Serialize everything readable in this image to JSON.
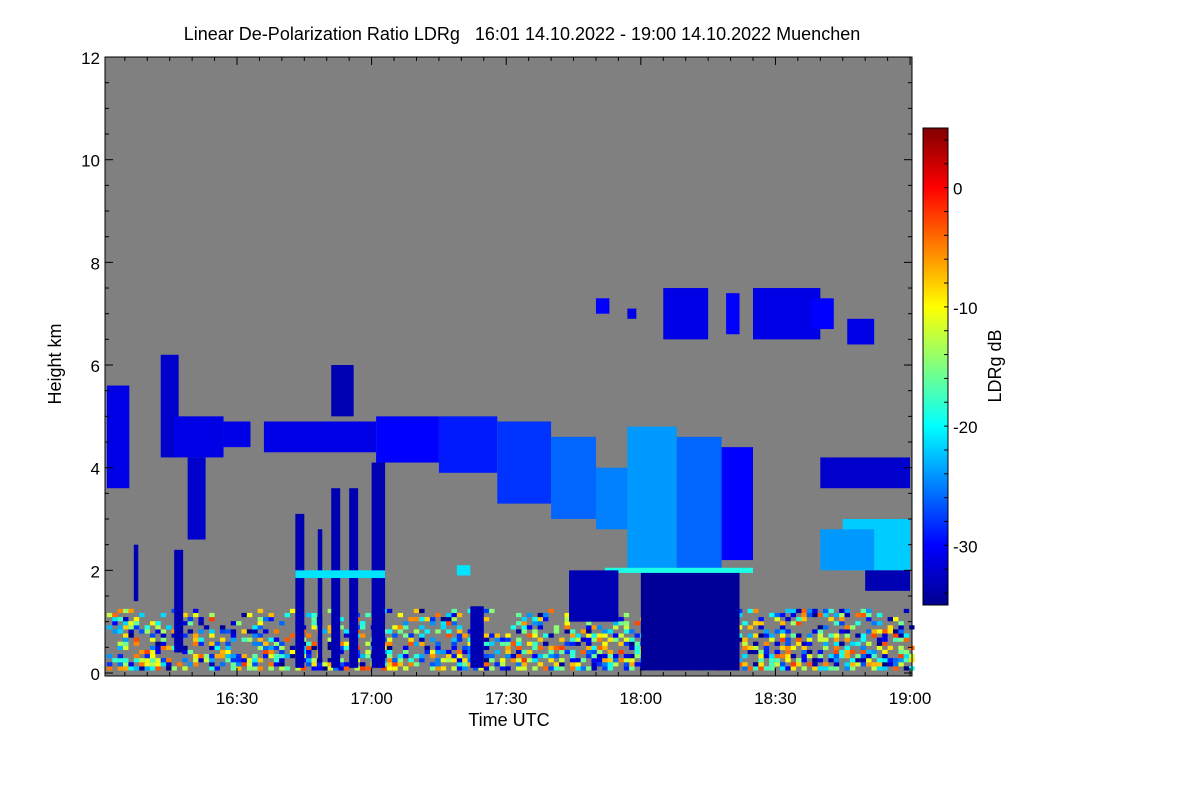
{
  "chart_data": {
    "type": "heatmap",
    "title": "Linear De-Polarization Ratio LDRg   16:01 14.10.2022 - 19:00 14.10.2022 Muenchen",
    "xlabel": "Time UTC",
    "ylabel": "Height km",
    "colorbar_label": "LDRg dB",
    "colormap": "jet",
    "missing_color": "#808080",
    "xlim_minutes_after_16": [
      1,
      180
    ],
    "ylim": [
      0,
      12
    ],
    "clim": [
      -35,
      5
    ],
    "x_ticks": [
      {
        "m": 30,
        "label": "16:30"
      },
      {
        "m": 60,
        "label": "17:00"
      },
      {
        "m": 90,
        "label": "17:30"
      },
      {
        "m": 120,
        "label": "18:00"
      },
      {
        "m": 150,
        "label": "18:30"
      },
      {
        "m": 180,
        "label": "19:00"
      }
    ],
    "y_ticks": [
      {
        "v": 0,
        "label": "0"
      },
      {
        "v": 2,
        "label": "2"
      },
      {
        "v": 4,
        "label": "4"
      },
      {
        "v": 6,
        "label": "6"
      },
      {
        "v": 8,
        "label": "8"
      },
      {
        "v": 10,
        "label": "10"
      },
      {
        "v": 12,
        "label": "12"
      }
    ],
    "cbar_ticks": [
      {
        "v": 0,
        "label": "0"
      },
      {
        "v": -10,
        "label": "-10"
      },
      {
        "v": -20,
        "label": "-20"
      },
      {
        "v": -30,
        "label": "-30"
      }
    ],
    "regions": [
      {
        "t": [
          1,
          6
        ],
        "h": [
          3.6,
          5.6
        ],
        "v": -31
      },
      {
        "t": [
          13,
          17
        ],
        "h": [
          4.2,
          6.2
        ],
        "v": -32
      },
      {
        "t": [
          16,
          27
        ],
        "h": [
          4.2,
          5.0
        ],
        "v": -31
      },
      {
        "t": [
          19,
          23
        ],
        "h": [
          2.6,
          4.2
        ],
        "v": -32
      },
      {
        "t": [
          27,
          33
        ],
        "h": [
          4.4,
          4.9
        ],
        "v": -31
      },
      {
        "t": [
          36,
          61
        ],
        "h": [
          4.3,
          4.9
        ],
        "v": -31
      },
      {
        "t": [
          51,
          56
        ],
        "h": [
          5.0,
          6.0
        ],
        "v": -33
      },
      {
        "t": [
          61,
          75
        ],
        "h": [
          4.1,
          5.0
        ],
        "v": -30
      },
      {
        "t": [
          75,
          88
        ],
        "h": [
          3.9,
          5.0
        ],
        "v": -29
      },
      {
        "t": [
          88,
          100
        ],
        "h": [
          3.3,
          4.9
        ],
        "v": -28
      },
      {
        "t": [
          100,
          110
        ],
        "h": [
          3.0,
          4.6
        ],
        "v": -26
      },
      {
        "t": [
          110,
          117
        ],
        "h": [
          2.8,
          4.0
        ],
        "v": -25
      },
      {
        "t": [
          117,
          128
        ],
        "h": [
          2.0,
          4.8
        ],
        "v": -24
      },
      {
        "t": [
          128,
          138
        ],
        "h": [
          2.0,
          4.6
        ],
        "v": -26
      },
      {
        "t": [
          138,
          145
        ],
        "h": [
          2.2,
          4.4
        ],
        "v": -30
      },
      {
        "t": [
          120,
          142
        ],
        "h": [
          0.05,
          2.0
        ],
        "v": -34
      },
      {
        "t": [
          112,
          145
        ],
        "h": [
          1.95,
          2.05
        ],
        "v": -19
      },
      {
        "t": [
          125,
          135
        ],
        "h": [
          6.5,
          7.5
        ],
        "v": -31
      },
      {
        "t": [
          139,
          142
        ],
        "h": [
          6.6,
          7.4
        ],
        "v": -30
      },
      {
        "t": [
          145,
          160
        ],
        "h": [
          6.5,
          7.5
        ],
        "v": -31
      },
      {
        "t": [
          158,
          163
        ],
        "h": [
          6.7,
          7.3
        ],
        "v": -30
      },
      {
        "t": [
          166,
          172
        ],
        "h": [
          6.4,
          6.9
        ],
        "v": -31
      },
      {
        "t": [
          110,
          113
        ],
        "h": [
          7.0,
          7.3
        ],
        "v": -30
      },
      {
        "t": [
          117,
          119
        ],
        "h": [
          6.9,
          7.1
        ],
        "v": -31
      },
      {
        "t": [
          160,
          180
        ],
        "h": [
          3.6,
          4.2
        ],
        "v": -32
      },
      {
        "t": [
          165,
          180
        ],
        "h": [
          2.0,
          3.0
        ],
        "v": -22
      },
      {
        "t": [
          160,
          172
        ],
        "h": [
          2.0,
          2.8
        ],
        "v": -24
      },
      {
        "t": [
          170,
          180
        ],
        "h": [
          1.6,
          2.0
        ],
        "v": -33
      },
      {
        "t": [
          43,
          45
        ],
        "h": [
          0.1,
          3.1
        ],
        "v": -33
      },
      {
        "t": [
          48,
          49
        ],
        "h": [
          0.2,
          2.8
        ],
        "v": -33
      },
      {
        "t": [
          51,
          53
        ],
        "h": [
          0.1,
          3.6
        ],
        "v": -33
      },
      {
        "t": [
          55,
          57
        ],
        "h": [
          0.1,
          3.6
        ],
        "v": -33
      },
      {
        "t": [
          60,
          63
        ],
        "h": [
          0.1,
          4.1
        ],
        "v": -33
      },
      {
        "t": [
          43,
          63
        ],
        "h": [
          1.85,
          2.0
        ],
        "v": -21
      },
      {
        "t": [
          16,
          18
        ],
        "h": [
          0.4,
          2.4
        ],
        "v": -33
      },
      {
        "t": [
          7,
          8
        ],
        "h": [
          1.4,
          2.5
        ],
        "v": -33
      },
      {
        "t": [
          82,
          85
        ],
        "h": [
          0.1,
          1.3
        ],
        "v": -33
      },
      {
        "t": [
          79,
          82
        ],
        "h": [
          1.9,
          2.1
        ],
        "v": -21
      },
      {
        "t": [
          104,
          115
        ],
        "h": [
          1.0,
          2.0
        ],
        "v": -33
      }
    ],
    "boundary_layer": {
      "t": [
        1,
        180
      ],
      "h": [
        0,
        1.2
      ],
      "v_range": [
        -35,
        0
      ]
    }
  }
}
